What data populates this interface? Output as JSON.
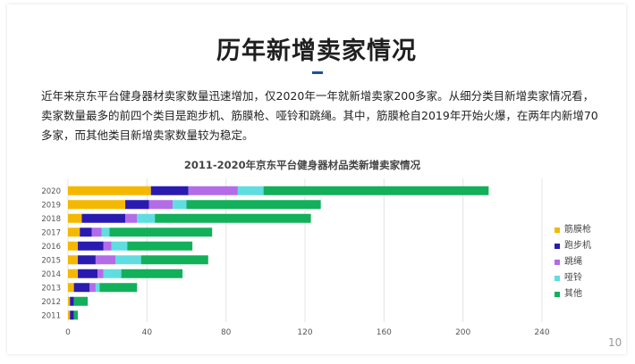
{
  "slide": {
    "title": "历年新增卖家情况",
    "paragraph": "近年来京东平台健身器材卖家数量迅速增加，仅2020年一年就新增卖家200多家。从细分类目新增卖家情况看，卖家数量最多的前四个类目是跑步机、筋膜枪、哑铃和跳绳。其中，筋膜枪自2019年开始火爆，在两年内新增70多家，而其他类目新增卖家数量较为稳定。",
    "page_number": "10"
  },
  "colors": {
    "筋膜枪": "#f5b800",
    "跑步机": "#2a1bb0",
    "跳绳": "#b46be8",
    "哑铃": "#5fdde0",
    "其他": "#12b05a",
    "accent": "#1f4e9c"
  },
  "chart_data": {
    "type": "bar",
    "orientation": "horizontal",
    "stacked": true,
    "title": "2011-2020年京东平台健身器材品类新增卖家情况",
    "categories": [
      "2020",
      "2019",
      "2018",
      "2017",
      "2016",
      "2015",
      "2014",
      "2013",
      "2012",
      "2011"
    ],
    "series": [
      {
        "name": "筋膜枪",
        "values": [
          42,
          29,
          7,
          6,
          5,
          5,
          5,
          3,
          1,
          1
        ]
      },
      {
        "name": "跑步机",
        "values": [
          19,
          12,
          22,
          6,
          13,
          9,
          10,
          8,
          2,
          2
        ]
      },
      {
        "name": "跳绳",
        "values": [
          25,
          12,
          6,
          5,
          4,
          10,
          3,
          3,
          0,
          0
        ]
      },
      {
        "name": "哑铃",
        "values": [
          13,
          7,
          9,
          4,
          8,
          13,
          9,
          2,
          0,
          0
        ]
      },
      {
        "name": "其他",
        "values": [
          114,
          68,
          79,
          52,
          33,
          34,
          31,
          19,
          7,
          2
        ]
      }
    ],
    "xlim": [
      0,
      240
    ],
    "xticks": [
      0,
      40,
      80,
      120,
      160,
      200,
      240
    ],
    "grid": "vertical",
    "legend": "right"
  }
}
